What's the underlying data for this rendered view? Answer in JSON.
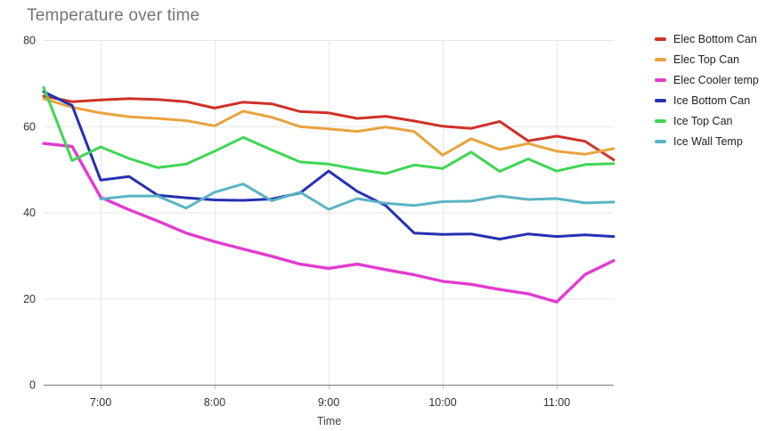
{
  "chart_data": {
    "type": "line",
    "title": "Temperature over time",
    "xlabel": "Time",
    "ylabel": "",
    "grid": true,
    "legend_position": "right",
    "ylim": [
      0,
      80
    ],
    "y_ticks": [
      0,
      20,
      40,
      60,
      80
    ],
    "x": [
      "6:30",
      "6:45",
      "7:00",
      "7:15",
      "7:30",
      "7:45",
      "8:00",
      "8:15",
      "8:30",
      "8:45",
      "9:00",
      "9:15",
      "9:30",
      "9:45",
      "10:00",
      "10:15",
      "10:30",
      "10:45",
      "11:00",
      "11:15",
      "11:30"
    ],
    "x_tick_labels": [
      "7:00",
      "8:00",
      "9:00",
      "10:00",
      "11:00"
    ],
    "series": [
      {
        "name": "Elec Bottom Can",
        "color": "#d03027",
        "values": [
          67,
          65.7,
          66.1,
          66.4,
          66.2,
          65.7,
          64.2,
          65.6,
          65.2,
          63.4,
          63.1,
          61.8,
          62.3,
          61.2,
          60,
          59.5,
          61.1,
          56.6,
          57.7,
          56.5,
          52.2
        ]
      },
      {
        "name": "Elec Top Can",
        "color": "#e8a33d",
        "values": [
          66.4,
          64.4,
          63.1,
          62.2,
          61.8,
          61.3,
          60.1,
          63.5,
          62.1,
          59.9,
          59.4,
          58.8,
          59.8,
          58.8,
          53.3,
          57.1,
          54.6,
          56,
          54.2,
          53.5,
          54.8
        ]
      },
      {
        "name": "Elec Cooler temp",
        "color": "#e23bd0",
        "values": [
          56,
          55.3,
          43.5,
          40.6,
          38,
          35.2,
          33.2,
          31.5,
          29.8,
          28,
          27,
          28,
          26.7,
          25.5,
          24,
          23.3,
          22.1,
          21.1,
          19.2,
          25.6,
          28.8
        ]
      },
      {
        "name": "Ice Bottom Can",
        "color": "#2430b4",
        "values": [
          68,
          64.8,
          47.5,
          48.3,
          44,
          43.4,
          42.9,
          42.8,
          43.1,
          44.5,
          49.6,
          44.9,
          41.6,
          35.2,
          34.9,
          35,
          33.8,
          35,
          34.4,
          34.8,
          34.4
        ]
      },
      {
        "name": "Ice Top Can",
        "color": "#3fd654",
        "values": [
          69,
          52,
          55.2,
          52.5,
          50.4,
          51.2,
          54.2,
          57.4,
          54.5,
          51.7,
          51.2,
          50,
          49,
          51,
          50.2,
          54,
          49.5,
          52.4,
          49.6,
          51.1,
          51.3
        ]
      },
      {
        "name": "Ice Wall Temp",
        "color": "#5ab4c5",
        "values": [
          null,
          null,
          43.1,
          43.8,
          43.8,
          41,
          44.7,
          46.6,
          42.7,
          44.7,
          40.7,
          43.2,
          42.1,
          41.6,
          42.5,
          42.6,
          43.8,
          43,
          43.2,
          42.2,
          42.4
        ]
      }
    ],
    "colors": {
      "title_text": "#757575",
      "tick_text": "#333333",
      "gridline": "#e6e6e6",
      "axis_line": "#757575"
    }
  }
}
